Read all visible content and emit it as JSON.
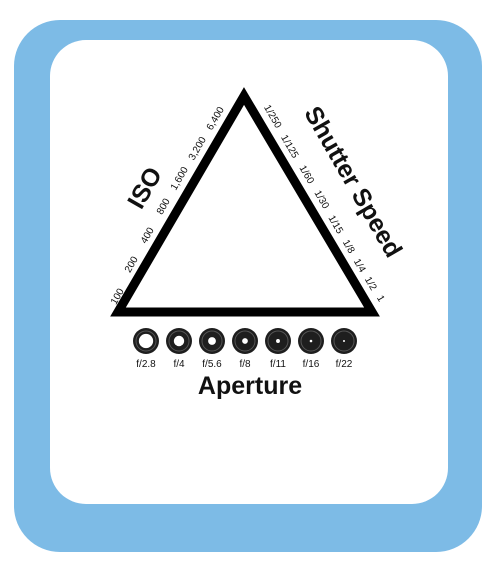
{
  "iso": {
    "title": "ISO",
    "values": [
      "100",
      "200",
      "400",
      "800",
      "1,600",
      "3,200",
      "6,400"
    ]
  },
  "shutter": {
    "title": "Shutter Speed",
    "values": [
      "1/250",
      "1/125",
      "1/60",
      "1/30",
      "1/15",
      "1/8",
      "1/4",
      "1/2",
      "1"
    ]
  },
  "aperture": {
    "title": "Aperture",
    "values": [
      "f/2.8",
      "f/4",
      "f/5.6",
      "f/8",
      "f/11",
      "f/16",
      "f/22"
    ],
    "opening_ratio": [
      0.55,
      0.4,
      0.3,
      0.22,
      0.15,
      0.1,
      0.06
    ]
  },
  "colors": {
    "frame": "#7dbbe6",
    "card": "#ffffff",
    "triangle": "#000000",
    "lens": "#1e1e1e"
  }
}
